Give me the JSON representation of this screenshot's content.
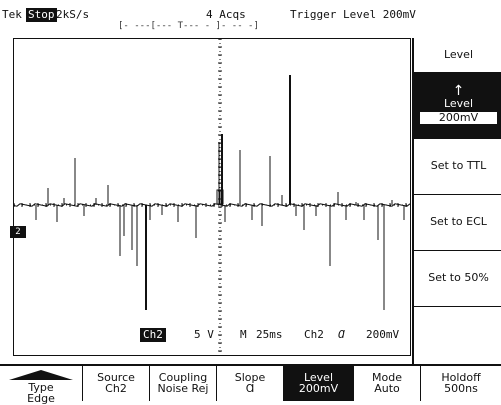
{
  "status_bar": {
    "brand": "Tek",
    "run_state": "Stop",
    "sample_rate": "2kS/s",
    "acquisitions": "4 Acqs",
    "trigger_readout": "Trigger Level  200mV",
    "record_bar": "[-   ---[---   T--- - ]- --   -]"
  },
  "ground_marker": "2",
  "channel_readout": {
    "channel": "Ch2",
    "volts_per_div": "5 V",
    "timebase_label": "M",
    "time_per_div": "25ms",
    "trigger_source": "Ch2",
    "slope_symbol": "Ɑ",
    "trigger_level": "200mV"
  },
  "side_menu": {
    "title": "Level",
    "level_arrow": "↑",
    "level_label": "Level",
    "level_value": "200mV",
    "ttl": "Set to TTL",
    "ecl": "Set to ECL",
    "fifty": "Set to 50%"
  },
  "bottom_menu": [
    {
      "line1": "Type",
      "line2": "Edge"
    },
    {
      "line1": "Source",
      "line2": "Ch2"
    },
    {
      "line1": "Coupling",
      "line2": "Noise Rej"
    },
    {
      "line1": "Slope",
      "line2": "Ɑ"
    },
    {
      "line1": "Level",
      "line2": "200mV"
    },
    {
      "line1": "Mode",
      "line2": "Auto"
    },
    {
      "line1": "Holdoff",
      "line2": "500ns"
    }
  ]
}
